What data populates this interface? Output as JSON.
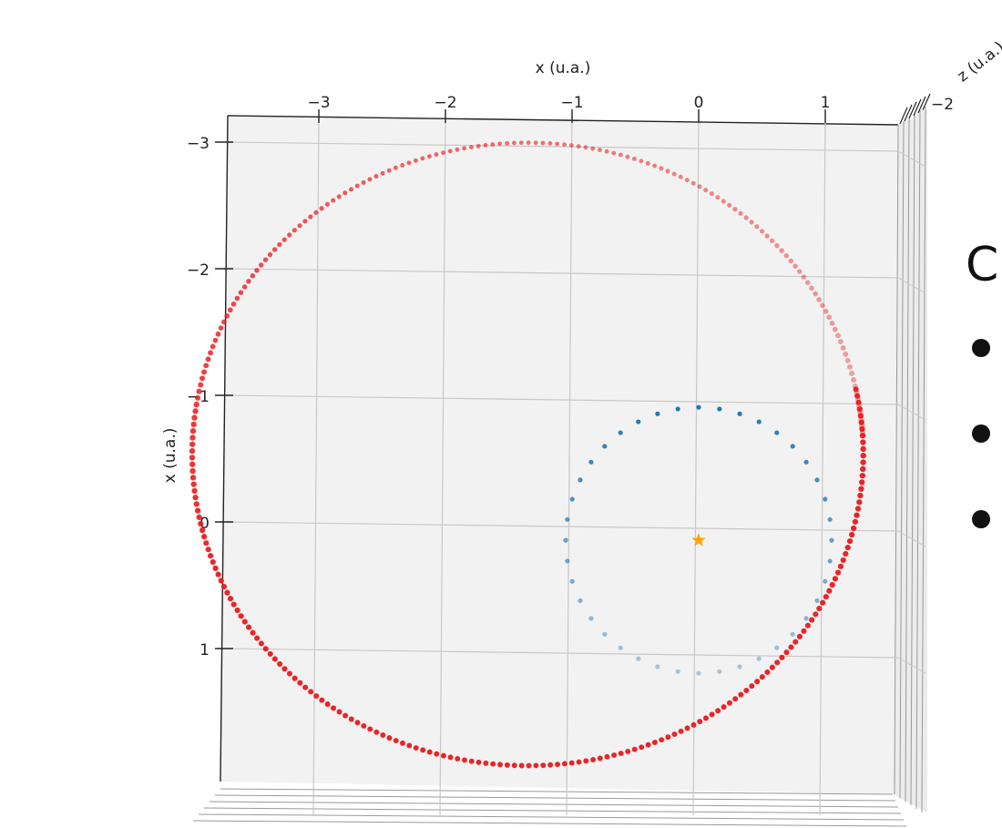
{
  "chart_data": {
    "type": "scatter",
    "projection": "3d",
    "view": "top-down",
    "xlabel": "x (u.a.)",
    "ylabel": "x (u.a.)",
    "zlabel": "z (u.a.)",
    "x_ticks": [
      "−3",
      "−2",
      "−1",
      "0",
      "1"
    ],
    "y_ticks": [
      "−3",
      "−2",
      "−1",
      "0",
      "1"
    ],
    "z_ticks": [
      "−2"
    ],
    "xlim": [
      -3.7,
      1.6
    ],
    "ylim": [
      -3.3,
      2.0
    ],
    "grid": true,
    "colors": {
      "pane": "#f2f2f2",
      "grid": "#c8c8c8",
      "orbit_inner": "#1f77b4",
      "orbit_outer": "#e8191c",
      "star": "#ffa500"
    },
    "series": [
      {
        "kind": "star",
        "marker": "star",
        "points": [
          [
            0.0,
            0.08
          ]
        ]
      },
      {
        "kind": "inner-orbit",
        "marker": "dot",
        "shape": "circle",
        "center": [
          0.0,
          0.08
        ],
        "radius": 1.05,
        "points_count": 40
      },
      {
        "kind": "outer-orbit",
        "marker": "dot",
        "shape": "ellipse-arc",
        "params": {
          "a": 2.65,
          "b": 2.46,
          "cx": -1.35,
          "cy": -0.6,
          "theta_start_deg": -12,
          "theta_end_deg": 356
        },
        "points_count": 300
      }
    ]
  },
  "slide_text": {
    "title_char": "C"
  }
}
